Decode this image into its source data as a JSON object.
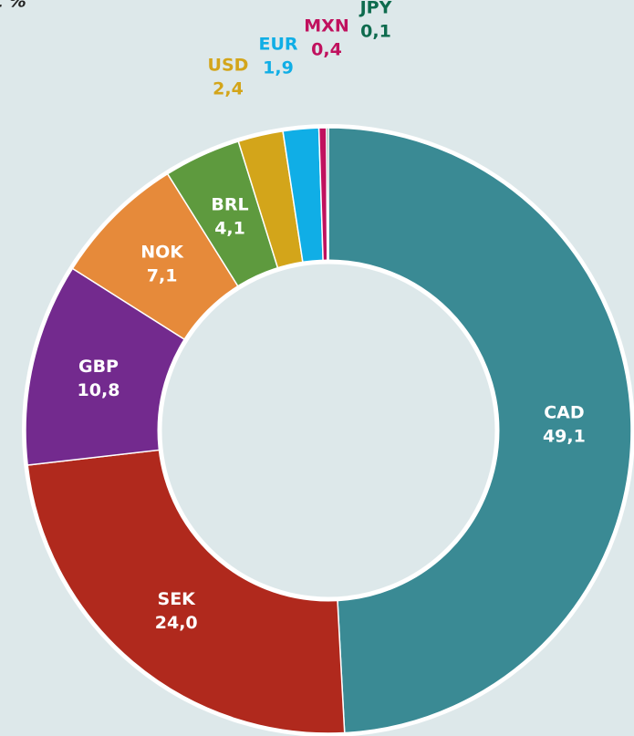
{
  "chart_data": {
    "type": "donut",
    "title": "t %",
    "categories": [
      "CAD",
      "SEK",
      "GBP",
      "NOK",
      "BRL",
      "USD",
      "EUR",
      "MXN",
      "JPY"
    ],
    "values": [
      49.1,
      24.0,
      10.8,
      7.1,
      4.1,
      2.4,
      1.9,
      0.4,
      0.1
    ],
    "value_labels": [
      "49,1",
      "24,0",
      "10,8",
      "7,1",
      "4,1",
      "2,4",
      "1,9",
      "0,4",
      "0,1"
    ],
    "colors": [
      "#3a8a94",
      "#b0291d",
      "#732a8e",
      "#e68a3a",
      "#5e9a3e",
      "#d3a51a",
      "#10aee6",
      "#c0115e",
      "#0e6b4e"
    ]
  }
}
